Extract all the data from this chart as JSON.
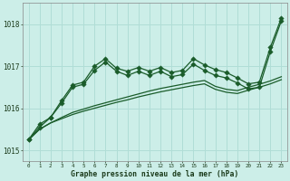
{
  "xlabel": "Graphe pression niveau de la mer (hPa)",
  "xlim": [
    -0.5,
    23.5
  ],
  "ylim": [
    1014.75,
    1018.5
  ],
  "yticks": [
    1015,
    1016,
    1017,
    1018
  ],
  "xticks": [
    0,
    1,
    2,
    3,
    4,
    5,
    6,
    7,
    8,
    9,
    10,
    11,
    12,
    13,
    14,
    15,
    16,
    17,
    18,
    19,
    20,
    21,
    22,
    23
  ],
  "bg_color": "#cceee8",
  "grid_color": "#b0ddd6",
  "line_color": "#1a5c2a",
  "series": {
    "straight1": [
      1015.25,
      1015.5,
      1015.65,
      1015.75,
      1015.85,
      1015.93,
      1016.0,
      1016.07,
      1016.14,
      1016.2,
      1016.27,
      1016.33,
      1016.39,
      1016.44,
      1016.49,
      1016.54,
      1016.58,
      1016.45,
      1016.38,
      1016.35,
      1016.43,
      1016.5,
      1016.58,
      1016.68
    ],
    "straight2": [
      1015.25,
      1015.5,
      1015.65,
      1015.78,
      1015.9,
      1015.98,
      1016.06,
      1016.13,
      1016.2,
      1016.27,
      1016.34,
      1016.41,
      1016.47,
      1016.52,
      1016.57,
      1016.62,
      1016.66,
      1016.52,
      1016.45,
      1016.42,
      1016.5,
      1016.57,
      1016.65,
      1016.75
    ],
    "marked1": [
      1015.25,
      1015.62,
      1015.78,
      1016.18,
      1016.55,
      1016.62,
      1017.0,
      1017.18,
      1016.95,
      1016.88,
      1016.97,
      1016.88,
      1016.97,
      1016.85,
      1016.9,
      1017.18,
      1017.03,
      1016.92,
      1016.85,
      1016.72,
      1016.58,
      1016.62,
      1017.45,
      1018.15
    ],
    "marked2": [
      1015.25,
      1015.55,
      1015.78,
      1016.12,
      1016.5,
      1016.57,
      1016.9,
      1017.1,
      1016.88,
      1016.78,
      1016.88,
      1016.78,
      1016.88,
      1016.75,
      1016.8,
      1017.05,
      1016.9,
      1016.78,
      1016.72,
      1016.6,
      1016.46,
      1016.5,
      1017.35,
      1018.08
    ]
  }
}
